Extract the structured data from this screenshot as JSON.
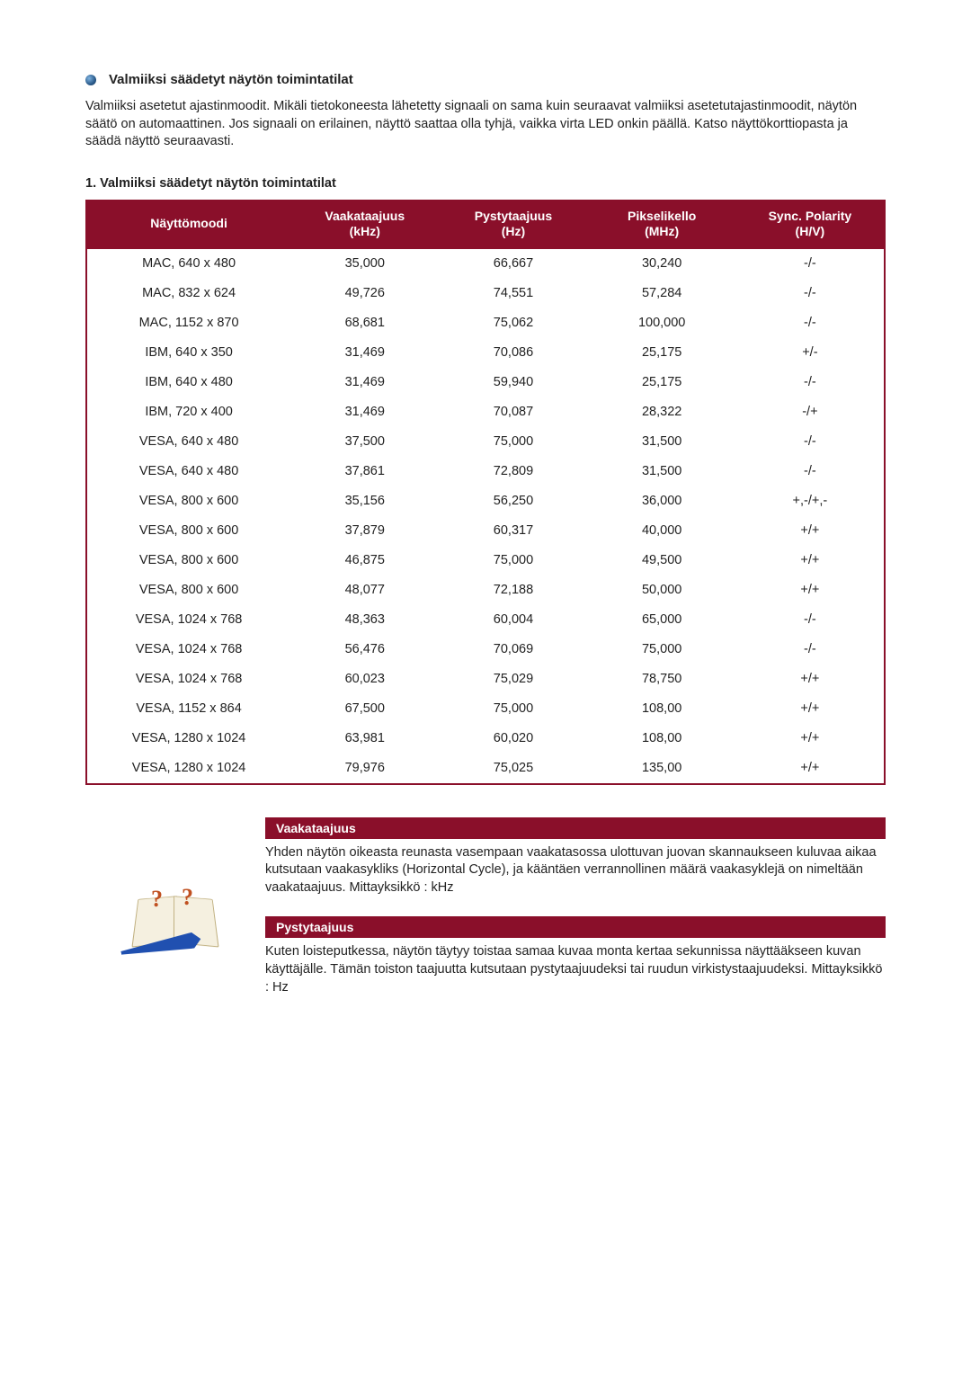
{
  "section_title": "Valmiiksi säädetyt näytön toimintatilat",
  "intro_text": "Valmiiksi asetetut ajastinmoodit. Mikäli tietokoneesta lähetetty signaali on sama kuin seuraavat valmiiksi asetetutajastinmoodit, näytön säätö on automaattinen. Jos signaali on erilainen, näyttö saattaa olla tyhjä, vaikka virta LED onkin päällä. Katso näyttökorttiopasta ja säädä näyttö seuraavasti.",
  "table_title": "1. Valmiiksi säädetyt näytön toimintatilat",
  "table": {
    "headers": {
      "mode": "Näyttömoodi",
      "hfreq": "Vaakataajuus\n(kHz)",
      "vfreq": "Pystytaajuus\n(Hz)",
      "pixclk": "Pikselikello\n(MHz)",
      "sync": "Sync. Polarity\n(H/V)"
    },
    "header_bg": "#8a0f2a",
    "header_fg": "#ffffff",
    "border_color": "#8a0f2a",
    "cell_fontsize": 14.5,
    "rows": [
      [
        "MAC, 640 x 480",
        "35,000",
        "66,667",
        "30,240",
        "-/-"
      ],
      [
        "MAC, 832 x 624",
        "49,726",
        "74,551",
        "57,284",
        "-/-"
      ],
      [
        "MAC, 1152 x 870",
        "68,681",
        "75,062",
        "100,000",
        "-/-"
      ],
      [
        "IBM, 640 x 350",
        "31,469",
        "70,086",
        "25,175",
        "+/-"
      ],
      [
        "IBM, 640 x 480",
        "31,469",
        "59,940",
        "25,175",
        "-/-"
      ],
      [
        "IBM, 720 x 400",
        "31,469",
        "70,087",
        "28,322",
        "-/+"
      ],
      [
        "VESA, 640 x 480",
        "37,500",
        "75,000",
        "31,500",
        "-/-"
      ],
      [
        "VESA, 640 x 480",
        "37,861",
        "72,809",
        "31,500",
        "-/-"
      ],
      [
        "VESA, 800 x 600",
        "35,156",
        "56,250",
        "36,000",
        "+,-/+,-"
      ],
      [
        "VESA, 800 x 600",
        "37,879",
        "60,317",
        "40,000",
        "+/+"
      ],
      [
        "VESA, 800 x 600",
        "46,875",
        "75,000",
        "49,500",
        "+/+"
      ],
      [
        "VESA, 800 x 600",
        "48,077",
        "72,188",
        "50,000",
        "+/+"
      ],
      [
        "VESA, 1024 x 768",
        "48,363",
        "60,004",
        "65,000",
        "-/-"
      ],
      [
        "VESA, 1024 x 768",
        "56,476",
        "70,069",
        "75,000",
        "-/-"
      ],
      [
        "VESA, 1024 x 768",
        "60,023",
        "75,029",
        "78,750",
        "+/+"
      ],
      [
        "VESA, 1152 x 864",
        "67,500",
        "75,000",
        "108,00",
        "+/+"
      ],
      [
        "VESA, 1280 x 1024",
        "63,981",
        "60,020",
        "108,00",
        "+/+"
      ],
      [
        "VESA, 1280 x 1024",
        "79,976",
        "75,025",
        "135,00",
        "+/+"
      ]
    ]
  },
  "defs": {
    "horizontal": {
      "title": "Vaakataajuus",
      "text": "Yhden näytön oikeasta reunasta vasempaan vaakatasossa ulottuvan juovan skannaukseen kuluvaa aikaa kutsutaan vaakasykliks (Horizontal Cycle), ja kääntäen verrannollinen määrä vaakasyklejä on nimeltään vaakataajuus. Mittayksikkö : kHz"
    },
    "vertical": {
      "title": "Pystytaajuus",
      "text": "Kuten loisteputkessa, näytön täytyy toistaa samaa kuvaa monta kertaa sekunnissa näyttääkseen kuvan käyttäjälle. Tämän toiston taajuutta kutsutaan pystytaajuudeksi tai ruudun virkistystaajuudeksi. Mittayksikkö : Hz"
    }
  }
}
